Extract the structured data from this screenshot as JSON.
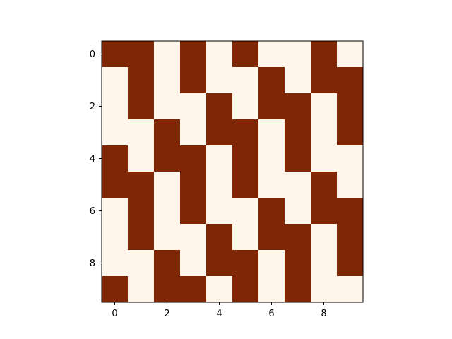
{
  "chart_data": {
    "type": "heatmap",
    "title": "",
    "xlabel": "",
    "ylabel": "",
    "colormap": {
      "low": "#fff5eb",
      "high": "#7f2704"
    },
    "x_ticks": [
      0,
      2,
      4,
      6,
      8
    ],
    "y_ticks": [
      0,
      2,
      4,
      6,
      8
    ],
    "xlim": [
      -0.5,
      9.5
    ],
    "ylim": [
      9.5,
      -0.5
    ],
    "grid": false,
    "legend": "none",
    "values": [
      [
        1,
        1,
        0,
        1,
        0,
        1,
        0,
        0,
        1,
        0
      ],
      [
        0,
        1,
        0,
        1,
        0,
        0,
        1,
        0,
        1,
        1
      ],
      [
        0,
        1,
        0,
        0,
        1,
        0,
        1,
        1,
        0,
        1
      ],
      [
        0,
        0,
        1,
        0,
        1,
        1,
        0,
        1,
        0,
        1
      ],
      [
        1,
        0,
        1,
        1,
        0,
        1,
        0,
        1,
        0,
        0
      ],
      [
        1,
        1,
        0,
        1,
        0,
        1,
        0,
        0,
        1,
        0
      ],
      [
        0,
        1,
        0,
        1,
        0,
        0,
        1,
        0,
        1,
        1
      ],
      [
        0,
        1,
        0,
        0,
        1,
        0,
        1,
        1,
        0,
        1
      ],
      [
        0,
        0,
        1,
        0,
        1,
        1,
        0,
        1,
        0,
        1
      ],
      [
        1,
        0,
        1,
        1,
        0,
        1,
        0,
        1,
        0,
        0
      ]
    ]
  }
}
